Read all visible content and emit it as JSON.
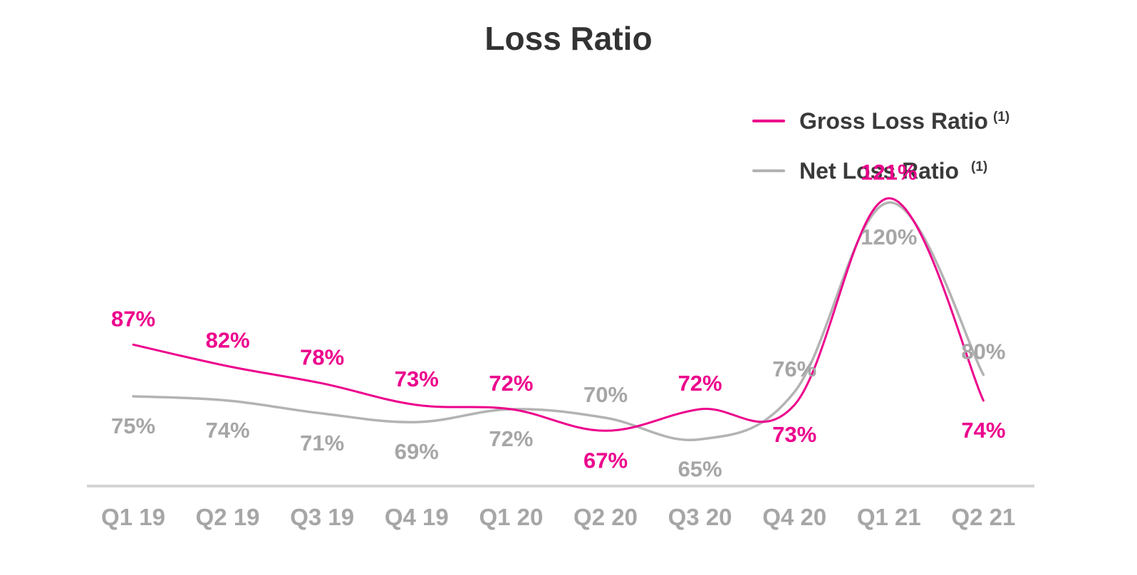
{
  "chart_data": {
    "type": "line",
    "title": "Loss Ratio",
    "xlabel": "",
    "ylabel": "",
    "categories": [
      "Q1 19",
      "Q2 19",
      "Q3 19",
      "Q4 19",
      "Q1 20",
      "Q2 20",
      "Q3 20",
      "Q4 20",
      "Q1 21",
      "Q2 21"
    ],
    "series": [
      {
        "name": "Gross Loss Ratio",
        "superscript": "(1)",
        "color": "#ec008c",
        "values": [
          87,
          82,
          78,
          73,
          72,
          67,
          72,
          73,
          121,
          74
        ],
        "labels": [
          "87%",
          "82%",
          "78%",
          "73%",
          "72%",
          "67%",
          "72%",
          "73%",
          "121%",
          "74%"
        ]
      },
      {
        "name": "Net Loss Ratio",
        "superscript": "(1)",
        "color": "#b3b3b3",
        "values": [
          75,
          74,
          71,
          69,
          72,
          70,
          65,
          76,
          120,
          80
        ],
        "labels": [
          "75%",
          "74%",
          "71%",
          "69%",
          "72%",
          "70%",
          "65%",
          "76%",
          "120%",
          "80%"
        ]
      }
    ],
    "legend_position": "top-right",
    "grid": false
  }
}
